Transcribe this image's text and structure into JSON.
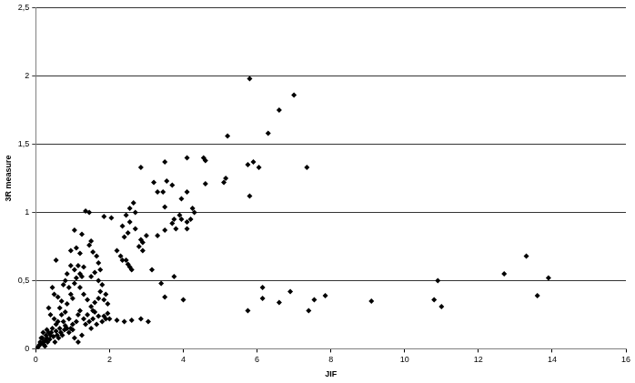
{
  "chart_data": {
    "type": "scatter",
    "x_label": "JIF",
    "y_label": "3R measure",
    "color": "#000000",
    "marker": "diamond",
    "grid": true,
    "xlim": [
      0,
      16
    ],
    "xticks": [
      0,
      2,
      4,
      6,
      8,
      10,
      12,
      14,
      16
    ],
    "ylim": [
      0,
      2.5
    ],
    "yticks": [
      0,
      {
        "value": 0.5,
        "label": "0,5"
      },
      1,
      {
        "value": 1.5,
        "label": "1,5"
      },
      2,
      {
        "value": 2.5,
        "label": "2,5"
      }
    ],
    "x": [
      5.8,
      7.0,
      6.6,
      6.3,
      5.2,
      7.35,
      5.9,
      5.75,
      6.05,
      5.8,
      5.1,
      5.15,
      4.55,
      4.6,
      4.1,
      4.6,
      3.5,
      3.55,
      2.85,
      3.2,
      3.7,
      3.45,
      3.5,
      3.3,
      4.25,
      4.3,
      4.1,
      4.1,
      3.95,
      3.9,
      3.95,
      3.75,
      3.8,
      3.7,
      4.1,
      4.2,
      3.5,
      3.3,
      3.0,
      2.85,
      2.9,
      2.65,
      2.55,
      2.7,
      2.45,
      2.55,
      2.35,
      2.5,
      2.4,
      2.7,
      2.8,
      2.9,
      2.2,
      2.3,
      2.45,
      2.5,
      2.55,
      2.6,
      2.35,
      3.15,
      3.4,
      3.5,
      3.75,
      4.0,
      3.05,
      2.85,
      2.6,
      2.4,
      2.2,
      2.0,
      1.85,
      1.95,
      2.05,
      1.85,
      1.45,
      1.35,
      1.05,
      1.25,
      0.95,
      1.1,
      1.2,
      1.5,
      1.45,
      1.55,
      1.65,
      1.7,
      1.75,
      1.6,
      1.5,
      1.7,
      1.8,
      1.75,
      1.9,
      1.85,
      1.95,
      1.7,
      1.6,
      1.5,
      1.55,
      1.4,
      1.3,
      1.2,
      1.05,
      1.1,
      1.2,
      1.3,
      1.25,
      1.05,
      1.15,
      0.95,
      0.85,
      0.8,
      0.75,
      0.9,
      0.95,
      1.0,
      0.85,
      0.7,
      0.6,
      0.5,
      0.55,
      0.45,
      0.35,
      0.4,
      0.5,
      0.55,
      0.6,
      0.65,
      0.7,
      0.75,
      0.8,
      0.85,
      0.9,
      0.95,
      1.0,
      1.1,
      1.15,
      1.2,
      1.3,
      1.35,
      1.4,
      1.45,
      1.5,
      1.55,
      1.6,
      1.65,
      1.7,
      1.8,
      1.9,
      1.25,
      1.15,
      1.05,
      1.0,
      0.9,
      0.8,
      0.65,
      0.55,
      0.45,
      0.4,
      0.35,
      0.3,
      0.25,
      0.2,
      0.15,
      0.1,
      0.05,
      0.02,
      0.08,
      0.12,
      0.18,
      0.22,
      0.28,
      0.32,
      0.38,
      0.42,
      0.48,
      0.52,
      0.58,
      0.62,
      0.68,
      0.72,
      0.78,
      0.3,
      0.2,
      0.15,
      0.25,
      5.75,
      6.15,
      6.15,
      6.6,
      6.9,
      7.4,
      7.55,
      7.85,
      9.1,
      10.8,
      10.9,
      11.0,
      12.7,
      13.3,
      13.6,
      13.9
    ],
    "values": [
      1.98,
      1.86,
      1.75,
      1.58,
      1.56,
      1.33,
      1.37,
      1.35,
      1.33,
      1.12,
      1.22,
      1.25,
      1.4,
      1.38,
      1.4,
      1.21,
      1.37,
      1.23,
      1.33,
      1.22,
      1.2,
      1.15,
      1.04,
      1.15,
      1.03,
      1.0,
      0.93,
      1.15,
      1.1,
      0.98,
      0.95,
      0.95,
      0.88,
      0.92,
      0.88,
      0.95,
      0.87,
      0.83,
      0.83,
      0.8,
      0.78,
      1.07,
      1.03,
      1.0,
      0.98,
      0.93,
      0.9,
      0.85,
      0.82,
      0.88,
      0.75,
      0.72,
      0.72,
      0.68,
      0.65,
      0.62,
      0.6,
      0.58,
      0.65,
      0.58,
      0.48,
      0.38,
      0.53,
      0.36,
      0.2,
      0.22,
      0.21,
      0.2,
      0.21,
      0.22,
      0.24,
      0.26,
      0.96,
      0.97,
      1.0,
      1.01,
      0.87,
      0.84,
      0.72,
      0.74,
      0.7,
      0.79,
      0.76,
      0.71,
      0.68,
      0.63,
      0.58,
      0.56,
      0.53,
      0.5,
      0.47,
      0.42,
      0.4,
      0.36,
      0.33,
      0.37,
      0.34,
      0.31,
      0.28,
      0.36,
      0.4,
      0.45,
      0.48,
      0.52,
      0.55,
      0.6,
      0.53,
      0.58,
      0.61,
      0.61,
      0.55,
      0.5,
      0.47,
      0.45,
      0.4,
      0.37,
      0.33,
      0.35,
      0.38,
      0.4,
      0.65,
      0.45,
      0.3,
      0.25,
      0.22,
      0.18,
      0.2,
      0.15,
      0.25,
      0.2,
      0.17,
      0.15,
      0.12,
      0.15,
      0.14,
      0.2,
      0.25,
      0.28,
      0.22,
      0.18,
      0.25,
      0.2,
      0.15,
      0.22,
      0.27,
      0.18,
      0.24,
      0.2,
      0.22,
      0.1,
      0.05,
      0.08,
      0.18,
      0.22,
      0.27,
      0.3,
      0.13,
      0.15,
      0.1,
      0.12,
      0.08,
      0.06,
      0.05,
      0.04,
      0.03,
      0.01,
      0.0,
      0.02,
      0.05,
      0.08,
      0.03,
      0.1,
      0.05,
      0.07,
      0.12,
      0.09,
      0.05,
      0.1,
      0.08,
      0.12,
      0.1,
      0.14,
      0.14,
      0.12,
      0.08,
      0.02,
      0.28,
      0.45,
      0.37,
      0.34,
      0.42,
      0.28,
      0.36,
      0.39,
      0.35,
      0.36,
      0.5,
      0.31,
      0.55,
      0.68,
      0.39,
      0.52
    ]
  }
}
